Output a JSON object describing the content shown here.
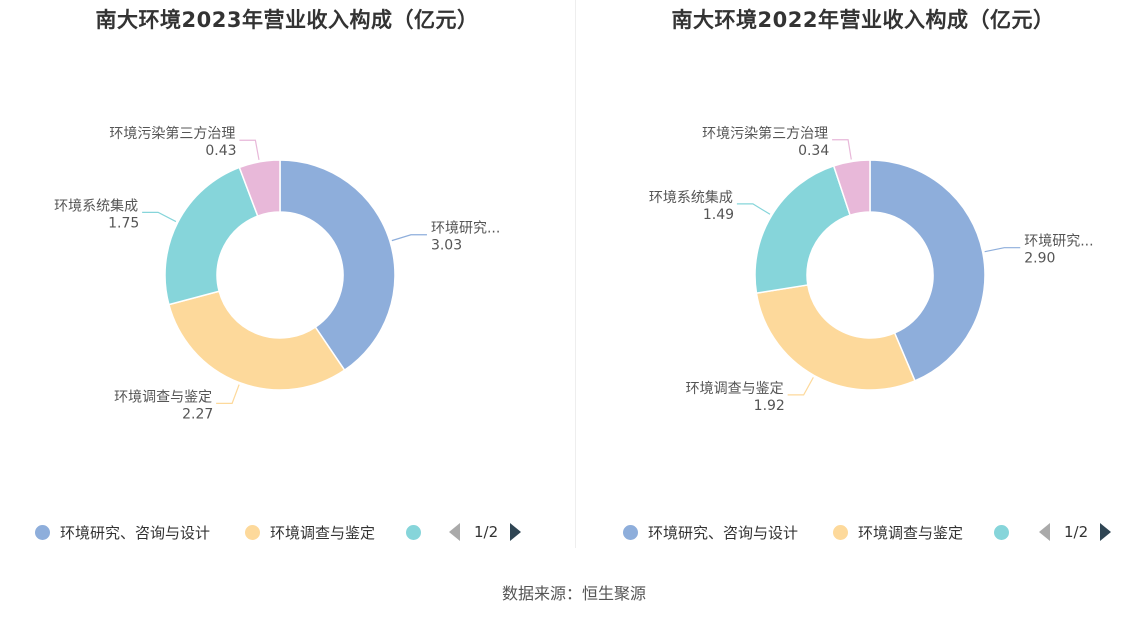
{
  "source": "数据来源：恒生聚源",
  "colors": [
    "#8eaedb",
    "#fdd99b",
    "#86d5da",
    "#e8b8d9"
  ],
  "chart_data": [
    {
      "type": "pie",
      "variant": "donut",
      "title": "南大环境2023年营业收入构成（亿元）",
      "categories": [
        "环境研究、咨询与设计",
        "环境调查与鉴定",
        "环境系统集成",
        "环境污染第三方治理"
      ],
      "slice_labels": [
        "环境研究...",
        "环境调查与鉴定",
        "环境系统集成",
        "环境污染第三方治理"
      ],
      "value_labels": [
        "3.03",
        "2.27",
        "1.75",
        "0.43"
      ],
      "values": [
        3.03,
        2.27,
        1.75,
        0.43
      ],
      "legend": {
        "placement": "bottom",
        "visible_entries": [
          "环境研究、咨询与设计",
          "环境调查与鉴定",
          ""
        ],
        "page": "1/2"
      }
    },
    {
      "type": "pie",
      "variant": "donut",
      "title": "南大环境2022年营业收入构成（亿元）",
      "categories": [
        "环境研究、咨询与设计",
        "环境调查与鉴定",
        "环境系统集成",
        "环境污染第三方治理"
      ],
      "slice_labels": [
        "环境研究...",
        "环境调查与鉴定",
        "环境系统集成",
        "环境污染第三方治理"
      ],
      "value_labels": [
        "2.90",
        "1.92",
        "1.49",
        "0.34"
      ],
      "values": [
        2.9,
        1.92,
        1.49,
        0.34
      ],
      "legend": {
        "placement": "bottom",
        "visible_entries": [
          "环境研究、咨询与设计",
          "环境调查与鉴定",
          ""
        ],
        "page": "1/2"
      }
    }
  ]
}
